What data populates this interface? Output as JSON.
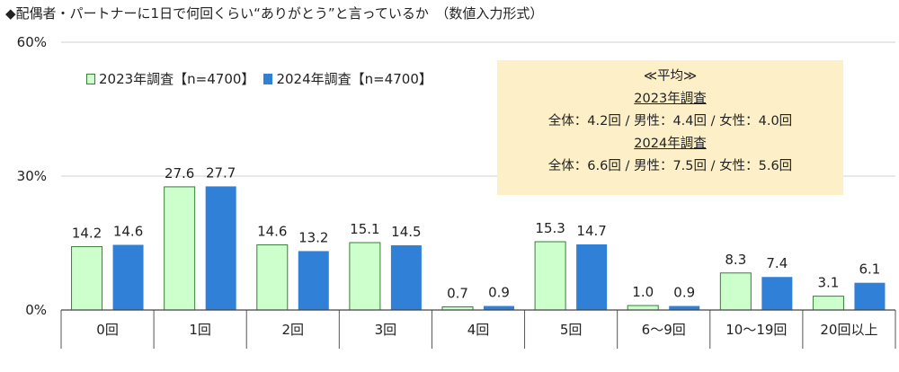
{
  "title": "◆配偶者・パートナーに1日で何回くらい“ありがとう”と言っているか　（数値入力形式）",
  "colors": {
    "series1": "#ccffcc",
    "series1_border": "#3a7d3a",
    "series2": "#2f80d6"
  },
  "summary": {
    "heading": "≪平均≫",
    "y2023_title": "2023年調査",
    "y2023_text": "全体：4.2回 / 男性：4.4回 / 女性：4.0回",
    "y2024_title": "2024年調査",
    "y2024_text": "全体：6.6回 / 男性：7.5回 / 女性：5.6回"
  },
  "chart_data": {
    "type": "bar",
    "categories": [
      "0回",
      "1回",
      "2回",
      "3回",
      "4回",
      "5回",
      "6～9回",
      "10～19回",
      "20回以上"
    ],
    "series": [
      {
        "name": "2023年調査【n=4700】",
        "values": [
          14.2,
          27.6,
          14.6,
          15.1,
          0.7,
          15.3,
          1.0,
          8.3,
          3.1
        ]
      },
      {
        "name": "2024年調査【n=4700】",
        "values": [
          14.6,
          27.7,
          13.2,
          14.5,
          0.9,
          14.7,
          0.9,
          7.4,
          6.1
        ]
      }
    ],
    "ylim": [
      0,
      60
    ],
    "yticks": [
      0,
      30,
      60
    ],
    "ytick_labels": [
      "0%",
      "30%",
      "60%"
    ],
    "title": "◆配偶者・パートナーに1日で何回くらい“ありがとう”と言っているか　（数値入力形式）",
    "xlabel": "",
    "ylabel": "",
    "legend": "top-left"
  }
}
